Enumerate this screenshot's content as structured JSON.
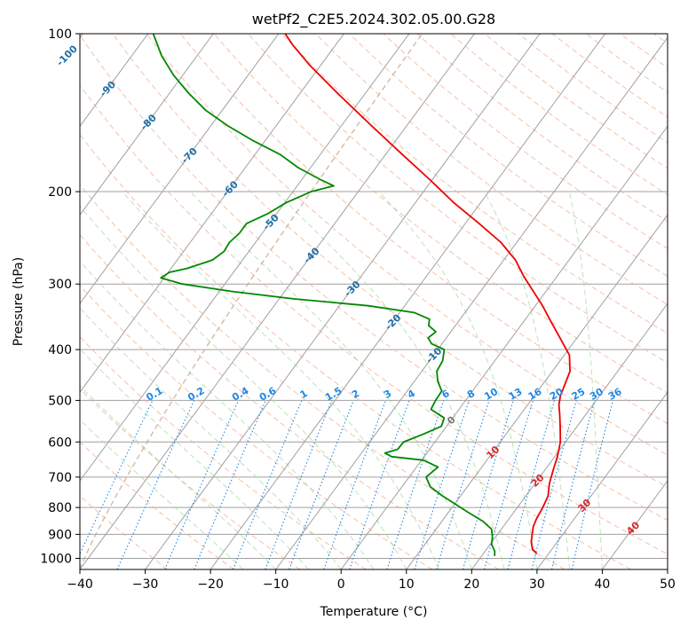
{
  "chart_data": {
    "type": "line",
    "title": "wetPf2_C2E5.2024.302.05.00.G28",
    "xlabel": "Temperature (°C)",
    "ylabel": "Pressure (hPa)",
    "xlim": [
      -40,
      50
    ],
    "ylim": [
      1050,
      100
    ],
    "y_scale": "log",
    "skew_t": true,
    "grid": true,
    "x_ticks": [
      -40,
      -30,
      -20,
      -10,
      0,
      10,
      20,
      30,
      40,
      50
    ],
    "y_ticks": [
      100,
      200,
      300,
      400,
      500,
      600,
      700,
      800,
      900,
      1000
    ],
    "series": [
      {
        "role": "temperature",
        "color": "#ee0000",
        "p": [
          980,
          960,
          930,
          900,
          870,
          840,
          800,
          760,
          720,
          680,
          640,
          600,
          560,
          530,
          510,
          490,
          470,
          440,
          410,
          380,
          350,
          330,
          310,
          290,
          270,
          250,
          230,
          210,
          190,
          170,
          150,
          130,
          115,
          105,
          100
        ],
        "t": [
          28.2,
          27.0,
          26.0,
          25.3,
          24.6,
          24.2,
          23.9,
          23.4,
          22.2,
          21.3,
          20.4,
          19.2,
          17.4,
          15.9,
          14.8,
          14.0,
          13.5,
          12.7,
          10.8,
          7.4,
          3.7,
          1.1,
          -1.9,
          -5.1,
          -8.2,
          -12.4,
          -17.9,
          -24.1,
          -30.3,
          -37.4,
          -45.3,
          -54.2,
          -61.6,
          -66.6,
          -69.0
        ]
      },
      {
        "role": "dewpoint",
        "color": "#008800",
        "p": [
          990,
          970,
          940,
          910,
          880,
          850,
          820,
          790,
          760,
          730,
          700,
          670,
          650,
          640,
          630,
          620,
          600,
          580,
          560,
          540,
          520,
          500,
          480,
          460,
          440,
          420,
          400,
          390,
          380,
          370,
          360,
          350,
          340,
          330,
          320,
          310,
          300,
          292,
          285,
          280,
          270,
          260,
          250,
          240,
          230,
          220,
          210,
          200,
          195,
          190,
          180,
          170,
          160,
          150,
          140,
          130,
          120,
          110,
          100
        ],
        "t": [
          22.0,
          21.5,
          20.2,
          19.5,
          18.5,
          16.3,
          13.3,
          10.3,
          7.2,
          4.3,
          2.6,
          3.3,
          0.3,
          -5.0,
          -6.4,
          -4.9,
          -4.8,
          -2.7,
          -0.8,
          -1.3,
          -4.3,
          -4.6,
          -4.7,
          -6.4,
          -7.7,
          -8.0,
          -9.0,
          -11.6,
          -12.8,
          -12.3,
          -14.1,
          -14.7,
          -17.8,
          -25.6,
          -38.0,
          -48.0,
          -56.5,
          -60.5,
          -59.8,
          -57.5,
          -54.6,
          -53.8,
          -54.0,
          -53.5,
          -53.5,
          -51.3,
          -49.8,
          -47.2,
          -44.4,
          -47.0,
          -51.9,
          -56.1,
          -61.8,
          -67.3,
          -72.5,
          -77.0,
          -81.4,
          -85.5,
          -89.2
        ]
      }
    ],
    "isotherm_labels": [
      "-100",
      "-90",
      "-80",
      "-70",
      "-60",
      "-50",
      "-40",
      "-30",
      "-20",
      "-10",
      "0",
      "10",
      "20",
      "30",
      "40"
    ],
    "mixing_ratio_labels": [
      "0.1",
      "0.2",
      "0.4",
      "0.6",
      "1",
      "1.5",
      "2",
      "3",
      "4",
      "6",
      "8",
      "10",
      "13",
      "16",
      "20",
      "25",
      "30",
      "36"
    ],
    "colors": {
      "temperature": "#ee0000",
      "dewpoint": "#008800",
      "isotherm_label_cold": "#1f6fa8",
      "isotherm_label_zero": "#777777",
      "isotherm_label_warm": "#d62728",
      "mixing_ratio": "#1e88e5",
      "dry_adiabat": "#f4a582",
      "moist_adiabat": "#a6d9a0",
      "lcl_curve": "#c8a98a",
      "grid": "#a0a0a0"
    }
  }
}
